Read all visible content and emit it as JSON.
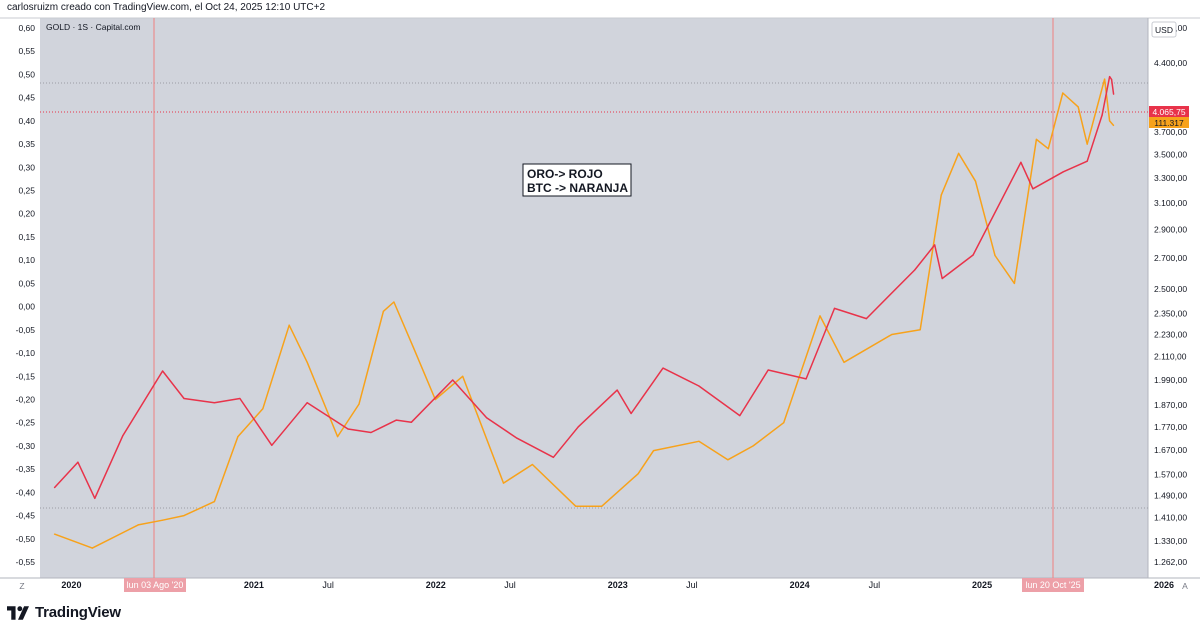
{
  "header": {
    "caption": "carlosruizm creado con TradingView.com, el Oct 24, 2025 12:10 UTC+2"
  },
  "legend": {
    "symbol": "GOLD · 1S · Capital.com"
  },
  "annotation": {
    "line1": "ORO-> ROJO",
    "line2": "BTC -> NARANJA"
  },
  "footer": {
    "brand": "TradingView"
  },
  "axis": {
    "currency": "USD",
    "left_ticks": [
      "0,60",
      "0,55",
      "0,50",
      "0,45",
      "0,40",
      "0,35",
      "0,30",
      "0,25",
      "0,20",
      "0,15",
      "0,10",
      "0,05",
      "0,00",
      "-0,05",
      "-0,10",
      "-0,15",
      "-0,20",
      "-0,25",
      "-0,30",
      "-0,35",
      "-0,40",
      "-0,45",
      "-0,50",
      "-0,55"
    ],
    "right_ticks": [
      "4.800,00",
      "4.400,00",
      "3.700,00",
      "3.500,00",
      "3.300,00",
      "3.100,00",
      "2.900,00",
      "2.700,00",
      "2.500,00",
      "2.350,00",
      "2.230,00",
      "2.110,00",
      "1.990,00",
      "1.870,00",
      "1.770,00",
      "1.670,00",
      "1.570,00",
      "1.490,00",
      "1.410,00",
      "1.330,00",
      "1.262,00"
    ],
    "x_labels": [
      {
        "text": "2020",
        "year": true
      },
      {
        "text": "2021",
        "year": true
      },
      {
        "text": "Jul",
        "year": false
      },
      {
        "text": "2022",
        "year": true
      },
      {
        "text": "Jul",
        "year": false
      },
      {
        "text": "2023",
        "year": true
      },
      {
        "text": "Jul",
        "year": false
      },
      {
        "text": "2024",
        "year": true
      },
      {
        "text": "Jul",
        "year": false
      },
      {
        "text": "2025",
        "year": true
      },
      {
        "text": "Jul",
        "year": false
      },
      {
        "text": "2026",
        "year": true
      }
    ],
    "corner_left": "Z",
    "corner_right": "A"
  },
  "markers": {
    "start_label": "lun 03 Ago '20",
    "end_label": "lun 20 Oct '25",
    "gold_price_label": "4.065,75",
    "btc_price_label": "111.317"
  },
  "colors": {
    "plot_bg": "#d1d4dc",
    "gold_line": "#e8334a",
    "btc_line": "#f7a21b",
    "vertical_marker": "#f08080",
    "marker_label_bg": "#eda0a8"
  },
  "chart_data": {
    "type": "line",
    "y_scale": "logarithmic",
    "y_right_range": [
      1262,
      4800
    ],
    "y_left_range": [
      -0.55,
      0.6
    ],
    "x_range": [
      "2019-12",
      "2026-01"
    ],
    "series": [
      {
        "name": "ORO",
        "axis": "right",
        "x": [
          "2019-12-30",
          "2020-02-15",
          "2020-03-20",
          "2020-05-15",
          "2020-08-03",
          "2020-09-15",
          "2020-11-15",
          "2021-01-05",
          "2021-03-10",
          "2021-05-20",
          "2021-08-10",
          "2021-09-25",
          "2021-11-15",
          "2021-12-15",
          "2022-03-08",
          "2022-05-15",
          "2022-07-15",
          "2022-09-26",
          "2022-11-15",
          "2023-02-01",
          "2023-03-01",
          "2023-05-04",
          "2023-07-15",
          "2023-10-05",
          "2023-12-01",
          "2024-02-15",
          "2024-04-12",
          "2024-06-15",
          "2024-09-20",
          "2024-10-30",
          "2024-11-14",
          "2025-01-15",
          "2025-04-21",
          "2025-05-15",
          "2025-07-15",
          "2025-09-01",
          "2025-10-01",
          "2025-10-16",
          "2025-10-20",
          "2025-10-24"
        ],
        "values": [
          1520,
          1620,
          1480,
          1730,
          2035,
          1900,
          1880,
          1900,
          1690,
          1880,
          1760,
          1745,
          1800,
          1790,
          1990,
          1810,
          1720,
          1640,
          1770,
          1940,
          1830,
          2050,
          1960,
          1820,
          2040,
          1995,
          2380,
          2320,
          2620,
          2790,
          2565,
          2720,
          3430,
          3210,
          3350,
          3440,
          3860,
          4250,
          4220,
          4066
        ]
      },
      {
        "name": "BTC",
        "axis": "left",
        "x": [
          "2019-12-30",
          "2020-03-15",
          "2020-06-15",
          "2020-08-03",
          "2020-09-15",
          "2020-11-15",
          "2021-01-01",
          "2021-02-20",
          "2021-04-14",
          "2021-05-20",
          "2021-07-20",
          "2021-09-01",
          "2021-10-20",
          "2021-11-10",
          "2021-12-20",
          "2022-02-01",
          "2022-03-28",
          "2022-06-18",
          "2022-08-15",
          "2022-11-10",
          "2023-01-01",
          "2023-03-15",
          "2023-04-15",
          "2023-07-15",
          "2023-09-11",
          "2023-11-01",
          "2024-01-01",
          "2024-03-14",
          "2024-05-01",
          "2024-08-05",
          "2024-10-01",
          "2024-11-12",
          "2024-12-17",
          "2025-01-20",
          "2025-02-28",
          "2025-04-08",
          "2025-05-22",
          "2025-06-15",
          "2025-07-14",
          "2025-08-14",
          "2025-09-01",
          "2025-10-06",
          "2025-10-16",
          "2025-10-24"
        ],
        "values": [
          -0.49,
          -0.52,
          -0.47,
          -0.46,
          -0.45,
          -0.42,
          -0.28,
          -0.22,
          -0.04,
          -0.12,
          -0.28,
          -0.21,
          -0.01,
          0.01,
          -0.09,
          -0.2,
          -0.15,
          -0.38,
          -0.34,
          -0.43,
          -0.43,
          -0.36,
          -0.31,
          -0.29,
          -0.33,
          -0.3,
          -0.25,
          -0.02,
          -0.12,
          -0.06,
          -0.05,
          0.24,
          0.33,
          0.27,
          0.11,
          0.05,
          0.36,
          0.34,
          0.46,
          0.43,
          0.35,
          0.49,
          0.4,
          0.39
        ]
      }
    ]
  }
}
